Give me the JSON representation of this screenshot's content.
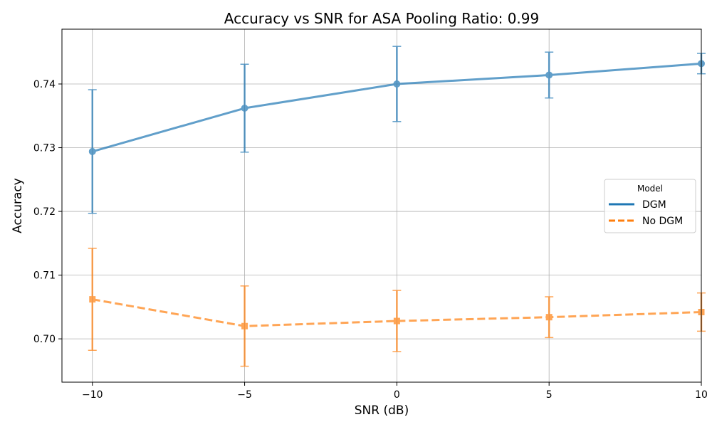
{
  "chart_data": {
    "type": "line",
    "title": "Accuracy vs SNR for ASA Pooling Ratio: 0.99",
    "xlabel": "SNR (dB)",
    "ylabel": "Accuracy",
    "x": [
      -10,
      -5,
      0,
      5,
      10
    ],
    "x_tick_labels": [
      "−10",
      "−5",
      "0",
      "5",
      "10"
    ],
    "y_ticks": [
      0.7,
      0.71,
      0.72,
      0.73,
      0.74
    ],
    "y_tick_labels": [
      "0.70",
      "0.71",
      "0.72",
      "0.73",
      "0.74"
    ],
    "xlim": [
      -11,
      10
    ],
    "ylim": [
      0.6932,
      0.7486
    ],
    "grid": true,
    "legend": {
      "title": "Model",
      "placement": "center-right"
    },
    "series": [
      {
        "name": "DGM",
        "color": "#1f77b4",
        "line_style": "solid",
        "marker": "circle",
        "values": [
          0.7294,
          0.7362,
          0.74,
          0.7414,
          0.7432
        ],
        "error": [
          0.0097,
          0.0069,
          0.0059,
          0.0036,
          0.0016
        ]
      },
      {
        "name": "No DGM",
        "color": "#ff7f0e",
        "line_style": "dashed",
        "marker": "square",
        "values": [
          0.7062,
          0.702,
          0.7028,
          0.7034,
          0.7042
        ],
        "error": [
          0.008,
          0.0063,
          0.0048,
          0.0032,
          0.003
        ]
      }
    ]
  }
}
